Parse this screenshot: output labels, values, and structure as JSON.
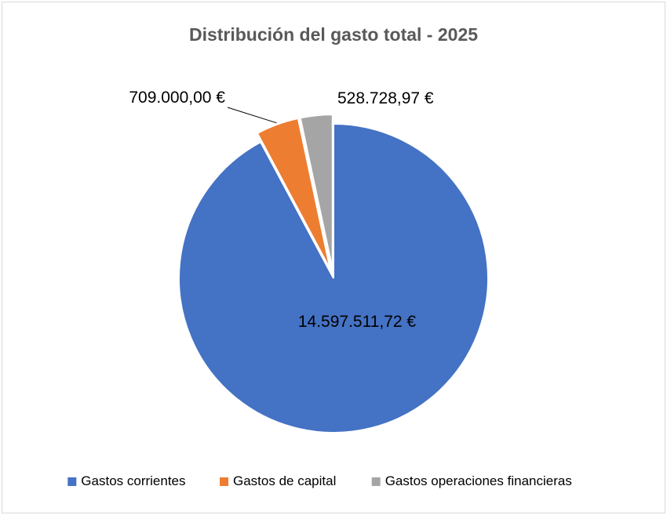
{
  "chart_data": {
    "type": "pie",
    "title": "Distribución del gasto total - 2025",
    "categories": [
      "Gastos corrientes",
      "Gastos de capital",
      "Gastos operaciones financieras"
    ],
    "values": [
      14597511.72,
      709000.0,
      528728.97
    ],
    "data_labels": [
      "14.597.511,72 €",
      "709.000,00 €",
      "528.728,97 €"
    ],
    "colors": [
      "#4472c4",
      "#ed7d31",
      "#a5a5a5"
    ],
    "legend_position": "bottom",
    "start_angle_deg": 0,
    "direction": "clockwise"
  }
}
